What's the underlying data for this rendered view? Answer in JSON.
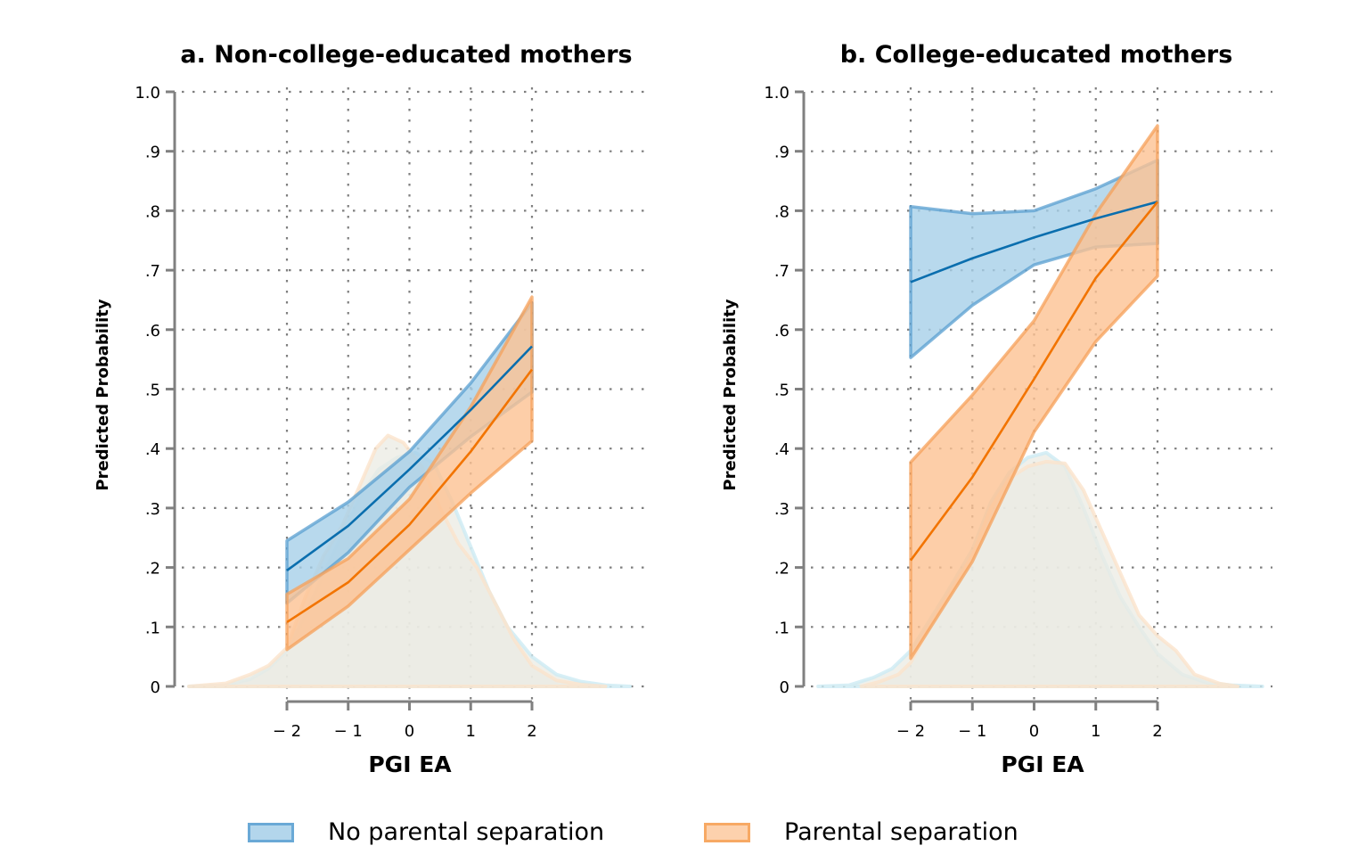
{
  "colors": {
    "no_sep_fill": "#a6cfe8",
    "no_sep_edge": "#5a9fd0",
    "no_sep_line": "#0a6eae",
    "sep_fill": "#fcc292",
    "sep_edge": "#f5a05a",
    "sep_line": "#f27400",
    "density_blue": "#cdebf4",
    "density_orange": "#fbe3cc",
    "density_fill": "#ebebe3",
    "grid": "#7f7f7f",
    "axis": "#808080"
  },
  "legend": {
    "items": [
      {
        "label": "No parental separation",
        "key": "no_sep"
      },
      {
        "label": "Parental separation",
        "key": "sep"
      }
    ]
  },
  "chart_data": [
    {
      "type": "line",
      "title": "a. Non-college-educated mothers",
      "xlabel": "PGI EA",
      "ylabel": "Predicted Probability",
      "x": [
        -2,
        -1,
        0,
        1,
        2
      ],
      "x_tick_labels": [
        "− 2",
        "− 1",
        "0",
        "1",
        "2"
      ],
      "y_ticks": [
        0,
        0.1,
        0.2,
        0.3,
        0.4,
        0.5,
        0.6,
        0.7,
        0.8,
        0.9,
        1.0
      ],
      "y_tick_labels": [
        "0",
        ".1",
        ".2",
        ".3",
        ".4",
        ".5",
        ".6",
        ".7",
        ".8",
        ".9",
        "1.0"
      ],
      "xlim": [
        -3.7,
        3.7
      ],
      "ylim": [
        0,
        1.0
      ],
      "grid": true,
      "legend_position": "bottom",
      "series": [
        {
          "name": "No parental separation",
          "key": "no_sep",
          "values": [
            0.195,
            0.27,
            0.365,
            0.465,
            0.572
          ],
          "ci_upper": [
            0.245,
            0.31,
            0.395,
            0.51,
            0.645
          ],
          "ci_lower": [
            0.14,
            0.225,
            0.335,
            0.42,
            0.495
          ]
        },
        {
          "name": "Parental separation",
          "key": "sep",
          "values": [
            0.108,
            0.175,
            0.272,
            0.395,
            0.533
          ],
          "ci_upper": [
            0.155,
            0.215,
            0.315,
            0.47,
            0.655
          ],
          "ci_lower": [
            0.062,
            0.135,
            0.23,
            0.325,
            0.413
          ]
        }
      ],
      "density": [
        {
          "name": "No parental separation",
          "key": "no_sep",
          "x": [
            -3.6,
            -3.0,
            -2.6,
            -2.3,
            -2.0,
            -1.7,
            -1.4,
            -1.1,
            -0.8,
            -0.5,
            -0.2,
            0.1,
            0.4,
            0.7,
            1.0,
            1.3,
            1.6,
            2.0,
            2.4,
            2.8,
            3.2,
            3.6
          ],
          "y": [
            0.0,
            0.002,
            0.012,
            0.03,
            0.06,
            0.12,
            0.19,
            0.255,
            0.32,
            0.365,
            0.385,
            0.393,
            0.375,
            0.31,
            0.235,
            0.16,
            0.1,
            0.05,
            0.02,
            0.008,
            0.002,
            0.0
          ]
        },
        {
          "name": "Parental separation",
          "key": "sep",
          "x": [
            -3.6,
            -3.0,
            -2.6,
            -2.3,
            -2.0,
            -1.7,
            -1.4,
            -1.1,
            -0.8,
            -0.55,
            -0.35,
            -0.1,
            0.2,
            0.5,
            0.8,
            1.1,
            1.4,
            1.7,
            2.0,
            2.4,
            2.8,
            3.2
          ],
          "y": [
            0.0,
            0.005,
            0.02,
            0.035,
            0.065,
            0.15,
            0.22,
            0.27,
            0.34,
            0.4,
            0.422,
            0.41,
            0.37,
            0.3,
            0.24,
            0.2,
            0.14,
            0.08,
            0.035,
            0.01,
            0.003,
            0.0
          ]
        }
      ]
    },
    {
      "type": "line",
      "title": "b. College-educated mothers",
      "xlabel": "PGI EA",
      "ylabel": "Predicted Probability",
      "x": [
        -2,
        -1,
        0,
        1,
        2
      ],
      "x_tick_labels": [
        "− 2",
        "− 1",
        "0",
        "1",
        "2"
      ],
      "y_ticks": [
        0,
        0.1,
        0.2,
        0.3,
        0.4,
        0.5,
        0.6,
        0.7,
        0.8,
        0.9,
        1.0
      ],
      "y_tick_labels": [
        "0",
        ".1",
        ".2",
        ".3",
        ".4",
        ".5",
        ".6",
        ".7",
        ".8",
        ".9",
        "1.0"
      ],
      "xlim": [
        -3.7,
        3.7
      ],
      "ylim": [
        0,
        1.0
      ],
      "grid": true,
      "legend_position": "bottom",
      "series": [
        {
          "name": "No parental separation",
          "key": "no_sep",
          "values": [
            0.68,
            0.72,
            0.755,
            0.787,
            0.815
          ],
          "ci_upper": [
            0.807,
            0.795,
            0.8,
            0.837,
            0.885
          ],
          "ci_lower": [
            0.553,
            0.641,
            0.709,
            0.739,
            0.745
          ]
        },
        {
          "name": "Parental separation",
          "key": "sep",
          "values": [
            0.212,
            0.352,
            0.517,
            0.687,
            0.815
          ],
          "ci_upper": [
            0.377,
            0.49,
            0.615,
            0.795,
            0.943
          ],
          "ci_lower": [
            0.047,
            0.21,
            0.428,
            0.58,
            0.69
          ]
        }
      ],
      "density": [
        {
          "name": "No parental separation",
          "key": "no_sep",
          "x": [
            -3.5,
            -3.0,
            -2.6,
            -2.3,
            -2.0,
            -1.7,
            -1.4,
            -1.0,
            -0.7,
            -0.4,
            -0.1,
            0.2,
            0.5,
            0.8,
            1.1,
            1.4,
            1.7,
            2.0,
            2.4,
            2.8,
            3.2,
            3.7
          ],
          "y": [
            0.0,
            0.002,
            0.015,
            0.03,
            0.06,
            0.11,
            0.16,
            0.23,
            0.31,
            0.36,
            0.385,
            0.393,
            0.37,
            0.3,
            0.22,
            0.15,
            0.1,
            0.055,
            0.02,
            0.006,
            0.002,
            0.0
          ]
        },
        {
          "name": "Parental separation",
          "key": "sep",
          "x": [
            -2.8,
            -2.5,
            -2.2,
            -2.0,
            -1.7,
            -1.4,
            -1.0,
            -0.7,
            -0.4,
            -0.1,
            0.2,
            0.5,
            0.8,
            1.1,
            1.4,
            1.7,
            2.0,
            2.3,
            2.6,
            3.0,
            3.3
          ],
          "y": [
            0.0,
            0.008,
            0.02,
            0.04,
            0.1,
            0.15,
            0.22,
            0.3,
            0.35,
            0.37,
            0.378,
            0.375,
            0.33,
            0.26,
            0.19,
            0.12,
            0.085,
            0.06,
            0.02,
            0.005,
            0.0
          ]
        }
      ]
    }
  ]
}
